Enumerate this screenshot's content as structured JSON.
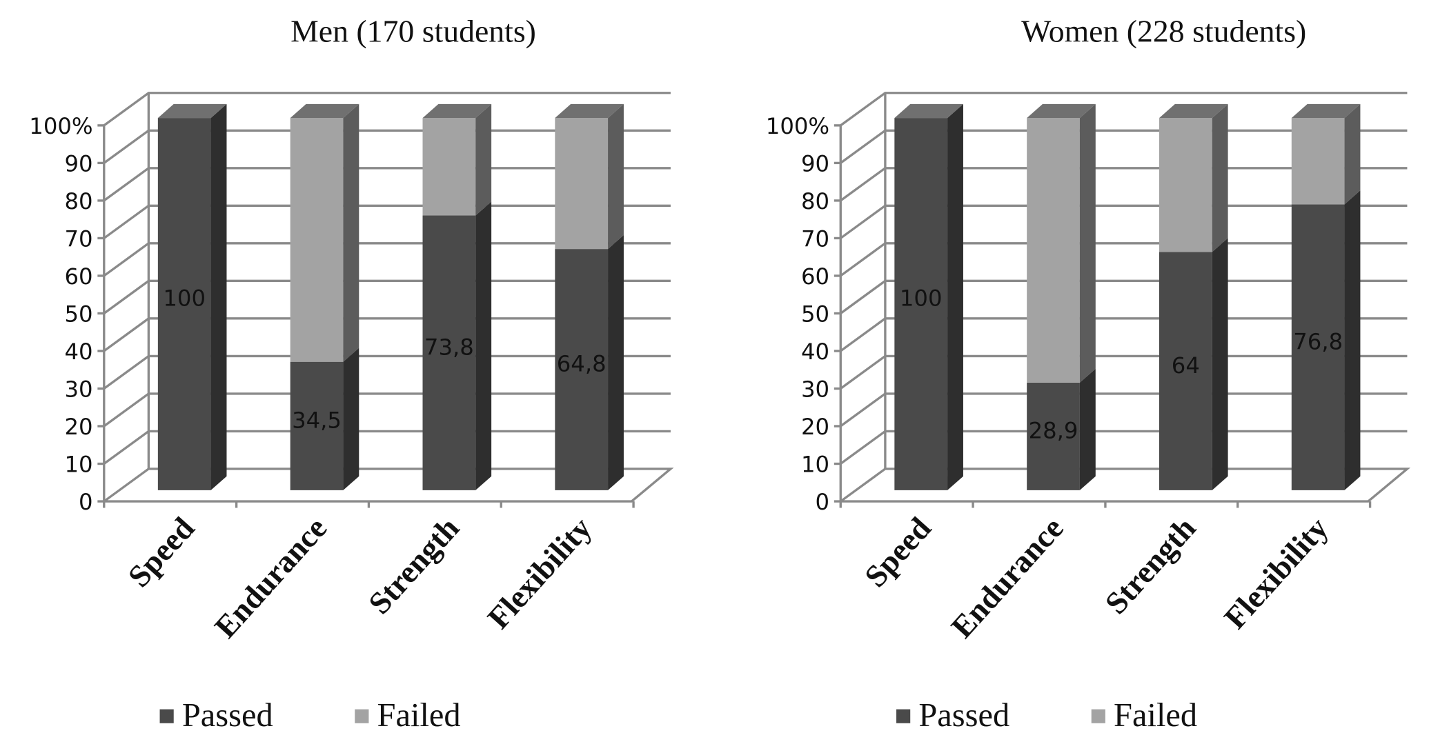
{
  "chart_data": [
    {
      "type": "bar",
      "stacked": true,
      "three_d": true,
      "title": "Men (170 students)",
      "categories": [
        "Speed",
        "Endurance",
        "Strength",
        "Flexibility"
      ],
      "series": [
        {
          "name": "Passed",
          "values": [
            100,
            34.5,
            73.8,
            64.8
          ],
          "color": "#4a4a4a"
        },
        {
          "name": "Failed",
          "values": [
            0,
            65.5,
            26.2,
            35.2
          ],
          "color": "#a3a3a3"
        }
      ],
      "data_labels": [
        "100",
        "34,5",
        "73,8",
        "64,8"
      ],
      "yticks": [
        "0",
        "10",
        "20",
        "30",
        "40",
        "50",
        "60",
        "70",
        "80",
        "90",
        "100%"
      ],
      "ylim": [
        0,
        100
      ],
      "grid": true,
      "legend": "bottom"
    },
    {
      "type": "bar",
      "stacked": true,
      "three_d": true,
      "title": "Women (228 students)",
      "categories": [
        "Speed",
        "Endurance",
        "Strength",
        "Flexibility"
      ],
      "series": [
        {
          "name": "Passed",
          "values": [
            100,
            28.9,
            64,
            76.8
          ],
          "color": "#4a4a4a"
        },
        {
          "name": "Failed",
          "values": [
            0,
            71.1,
            36,
            23.2
          ],
          "color": "#a3a3a3"
        }
      ],
      "data_labels": [
        "100",
        "28,9",
        "64",
        "76,8"
      ],
      "yticks": [
        "0",
        "10",
        "20",
        "30",
        "40",
        "50",
        "60",
        "70",
        "80",
        "90",
        "100%"
      ],
      "ylim": [
        0,
        100
      ],
      "grid": true,
      "legend": "bottom"
    }
  ]
}
